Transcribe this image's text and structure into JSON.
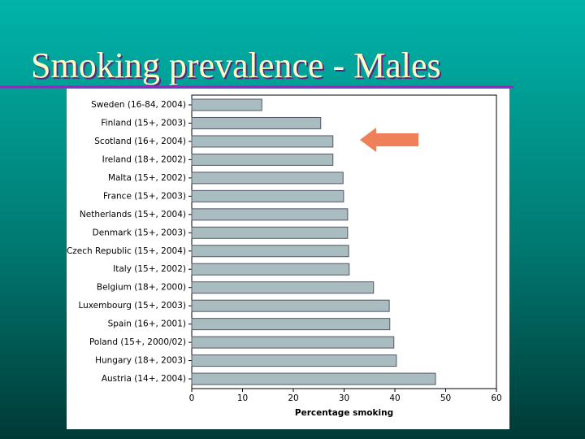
{
  "chart_data": {
    "type": "hbar",
    "title": "Smoking prevalence - Males",
    "categories": [
      "Sweden (16-84, 2004)",
      "Finland (15+, 2003)",
      "Scotland (16+, 2004)",
      "Ireland (18+, 2002)",
      "Malta (15+, 2002)",
      "France (15+, 2003)",
      "Netherlands (15+, 2004)",
      "Denmark (15+, 2003)",
      "Czech Republic (15+, 2004)",
      "Italy (15+, 2002)",
      "Belgium (18+, 2000)",
      "Luxembourg (15+, 2003)",
      "Spain (16+, 2001)",
      "Poland (15+, 2000/02)",
      "Hungary (18+, 2003)",
      "Austria (14+, 2004)"
    ],
    "values": [
      13.8,
      25.4,
      27.8,
      27.8,
      29.8,
      29.9,
      30.7,
      30.7,
      30.9,
      31,
      35.8,
      38.9,
      39,
      39.8,
      40.3,
      48
    ],
    "color": "#a9bdc1",
    "xlabel": "Percentage smoking",
    "xlim": [
      0,
      60
    ],
    "xticks": [
      0,
      10,
      20,
      30,
      40,
      50,
      60
    ]
  }
}
